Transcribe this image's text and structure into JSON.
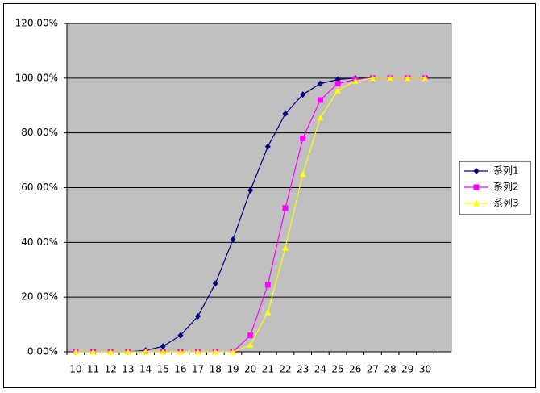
{
  "chart_data": {
    "type": "line",
    "categories": [
      10,
      11,
      12,
      13,
      14,
      15,
      16,
      17,
      18,
      19,
      20,
      21,
      22,
      23,
      24,
      25,
      26,
      27,
      28,
      29,
      30,
      null
    ],
    "series": [
      {
        "name": "系列1",
        "color": "#000080",
        "marker": "diamond",
        "values": [
          0,
          0,
          0,
          0,
          0.5,
          2,
          6,
          13,
          25,
          41,
          59,
          75,
          87,
          94,
          98,
          99.5,
          100,
          100,
          100,
          100,
          100,
          null
        ]
      },
      {
        "name": "系列2",
        "color": "#ff00ff",
        "marker": "square",
        "values": [
          0,
          0,
          0,
          0,
          0,
          0,
          0,
          0,
          0,
          0,
          6,
          24.5,
          52.5,
          78,
          92,
          98,
          99.5,
          100,
          100,
          100,
          100,
          null
        ]
      },
      {
        "name": "系列3",
        "color": "#ffff00",
        "marker": "triangle",
        "values": [
          0,
          0,
          0,
          0,
          0,
          0,
          0,
          0,
          0,
          0,
          2.5,
          14.5,
          38,
          65,
          85.5,
          95.5,
          99,
          100,
          100,
          100,
          100,
          null
        ]
      }
    ],
    "ylim": [
      0,
      120
    ],
    "yticks": [
      {
        "value": 0,
        "label": "0.00%"
      },
      {
        "value": 20,
        "label": "20.00%"
      },
      {
        "value": 40,
        "label": "40.00%"
      },
      {
        "value": 60,
        "label": "60.00%"
      },
      {
        "value": 80,
        "label": "80.00%"
      },
      {
        "value": 100,
        "label": "100.00%"
      },
      {
        "value": 120,
        "label": "120.00%"
      }
    ],
    "grid": true,
    "legend": "right",
    "plot_background": "#c0c0c0"
  }
}
